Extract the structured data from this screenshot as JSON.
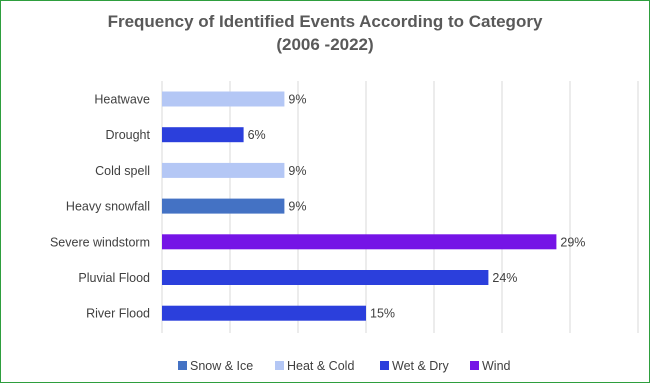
{
  "chart_data": {
    "type": "bar",
    "orientation": "horizontal",
    "title": "Frequency of Identified Events According to Category",
    "subtitle": "(2006 -2022)",
    "categories": [
      "Heatwave",
      "Drought",
      "Cold spell",
      "Heavy snowfall",
      "Severe windstorm",
      "Pluvial Flood",
      "River Flood"
    ],
    "values": [
      9,
      6,
      9,
      9,
      29,
      24,
      15
    ],
    "value_labels": [
      "9%",
      "6%",
      "9%",
      "9%",
      "29%",
      "24%",
      "15%"
    ],
    "bar_series": [
      "Heat & Cold",
      "Wet & Dry",
      "Heat & Cold",
      "Snow & Ice",
      "Wind",
      "Wet & Dry",
      "Wet & Dry"
    ],
    "xlim": [
      0,
      35
    ],
    "grid": "vertical",
    "legend": {
      "placement": "bottom",
      "entries": [
        {
          "name": "Snow & Ice",
          "color": "#4472c4"
        },
        {
          "name": "Heat & Cold",
          "color": "#b4c7f5"
        },
        {
          "name": "Wet & Dry",
          "color": "#2b3fdc"
        },
        {
          "name": "Wind",
          "color": "#7514e6"
        }
      ]
    }
  }
}
